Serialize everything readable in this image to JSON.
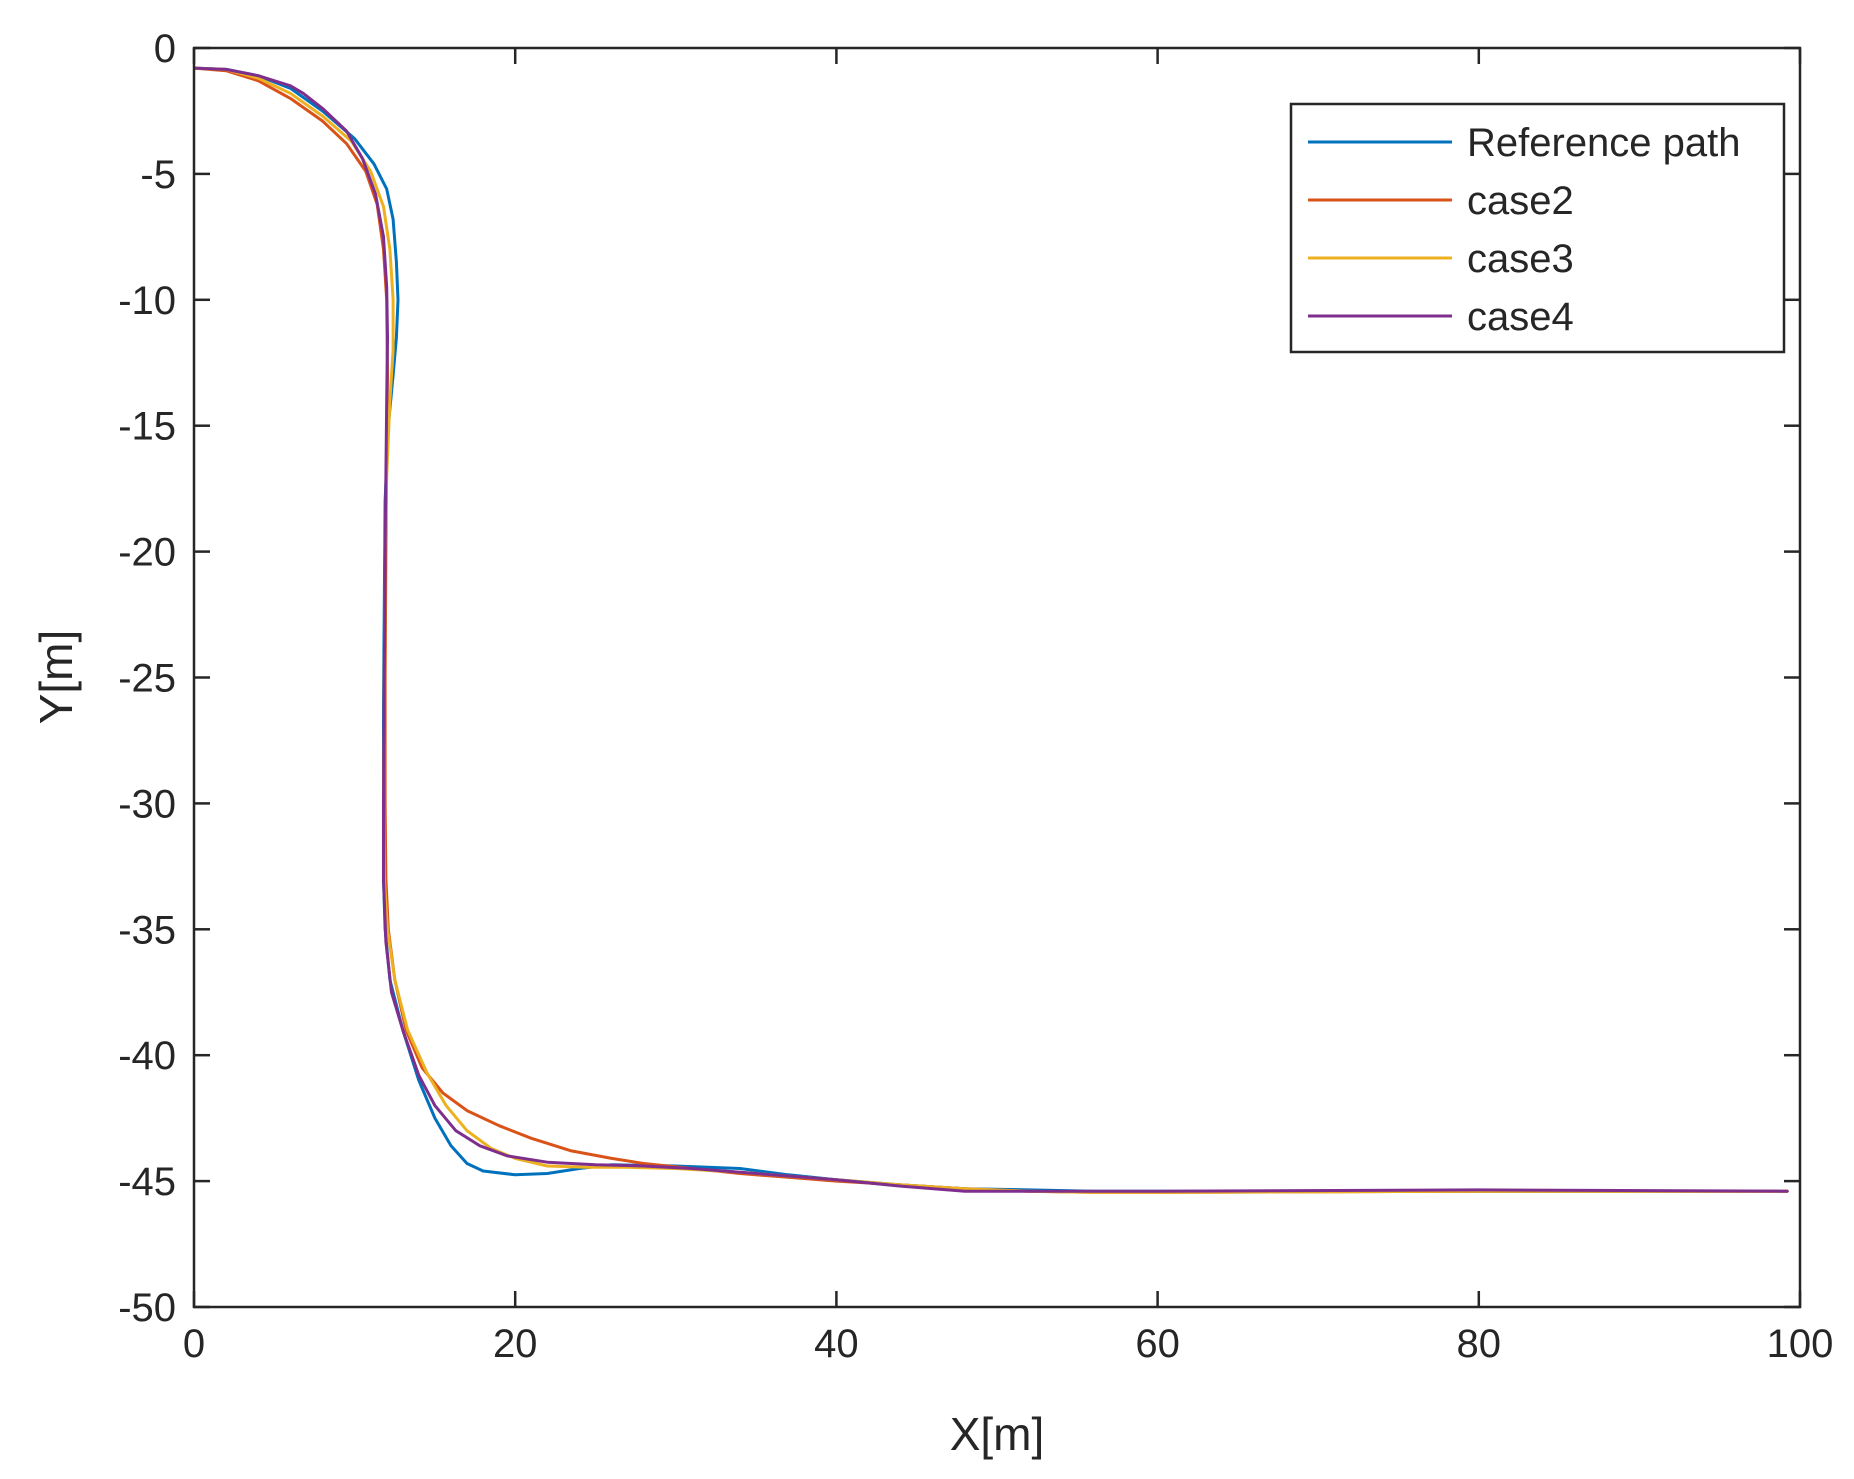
{
  "chart_data": {
    "type": "line",
    "title": "",
    "xlabel": "X[m]",
    "ylabel": "Y[m]",
    "xlim": [
      0,
      100
    ],
    "ylim": [
      -50,
      0
    ],
    "xticks": [
      0,
      20,
      40,
      60,
      80,
      100
    ],
    "yticks": [
      0,
      -5,
      -10,
      -15,
      -20,
      -25,
      -30,
      -35,
      -40,
      -45,
      -50
    ],
    "grid": false,
    "legend_position": "top-right",
    "series": [
      {
        "name": "Reference path",
        "color": "#0072BD",
        "points": [
          [
            0,
            -0.8
          ],
          [
            2,
            -0.85
          ],
          [
            4,
            -1.1
          ],
          [
            6,
            -1.6
          ],
          [
            8,
            -2.5
          ],
          [
            10,
            -3.6
          ],
          [
            11.2,
            -4.6
          ],
          [
            12,
            -5.6
          ],
          [
            12.4,
            -6.8
          ],
          [
            12.6,
            -8.5
          ],
          [
            12.7,
            -10
          ],
          [
            12.6,
            -11.5
          ],
          [
            12.4,
            -13
          ],
          [
            12.1,
            -15
          ],
          [
            11.9,
            -18
          ],
          [
            11.85,
            -22
          ],
          [
            11.8,
            -26
          ],
          [
            11.8,
            -30
          ],
          [
            11.8,
            -33
          ],
          [
            11.9,
            -35
          ],
          [
            12.2,
            -37
          ],
          [
            13,
            -39
          ],
          [
            14,
            -41
          ],
          [
            15,
            -42.5
          ],
          [
            16,
            -43.6
          ],
          [
            17,
            -44.3
          ],
          [
            18,
            -44.6
          ],
          [
            20,
            -44.75
          ],
          [
            22,
            -44.7
          ],
          [
            24,
            -44.5
          ],
          [
            26,
            -44.35
          ],
          [
            30,
            -44.4
          ],
          [
            34,
            -44.5
          ],
          [
            37,
            -44.75
          ],
          [
            40,
            -44.95
          ],
          [
            44,
            -45.15
          ],
          [
            48,
            -45.3
          ],
          [
            52,
            -45.35
          ],
          [
            56,
            -45.4
          ],
          [
            60,
            -45.4
          ],
          [
            80,
            -45.4
          ],
          [
            99.2,
            -45.4
          ]
        ]
      },
      {
        "name": "case2",
        "color": "#D95319",
        "points": [
          [
            0,
            -0.8
          ],
          [
            2,
            -0.9
          ],
          [
            4,
            -1.3
          ],
          [
            6,
            -2
          ],
          [
            8,
            -2.9
          ],
          [
            9.5,
            -3.8
          ],
          [
            10.7,
            -4.9
          ],
          [
            11.4,
            -6.2
          ],
          [
            11.8,
            -8
          ],
          [
            12,
            -10
          ],
          [
            12.05,
            -13
          ],
          [
            12,
            -16
          ],
          [
            11.95,
            -20
          ],
          [
            11.9,
            -25
          ],
          [
            11.9,
            -30
          ],
          [
            11.95,
            -33
          ],
          [
            12.1,
            -35
          ],
          [
            12.5,
            -37
          ],
          [
            13.2,
            -39
          ],
          [
            14.2,
            -40.5
          ],
          [
            15.5,
            -41.5
          ],
          [
            17,
            -42.2
          ],
          [
            19,
            -42.8
          ],
          [
            21,
            -43.3
          ],
          [
            23.5,
            -43.8
          ],
          [
            26,
            -44.1
          ],
          [
            28,
            -44.3
          ],
          [
            31,
            -44.5
          ],
          [
            34,
            -44.7
          ],
          [
            37,
            -44.85
          ],
          [
            40,
            -45
          ],
          [
            44,
            -45.15
          ],
          [
            48,
            -45.3
          ],
          [
            52,
            -45.4
          ],
          [
            56,
            -45.45
          ],
          [
            60,
            -45.45
          ],
          [
            80,
            -45.4
          ],
          [
            99.2,
            -45.4
          ]
        ]
      },
      {
        "name": "case3",
        "color": "#EDB120",
        "points": [
          [
            0,
            -0.8
          ],
          [
            2,
            -0.85
          ],
          [
            4,
            -1.2
          ],
          [
            6,
            -1.8
          ],
          [
            8,
            -2.7
          ],
          [
            9.8,
            -3.7
          ],
          [
            11,
            -4.9
          ],
          [
            11.8,
            -6.3
          ],
          [
            12.2,
            -8
          ],
          [
            12.4,
            -10
          ],
          [
            12.4,
            -12
          ],
          [
            12.2,
            -14
          ],
          [
            12,
            -17
          ],
          [
            11.9,
            -20
          ],
          [
            11.85,
            -25
          ],
          [
            11.8,
            -30
          ],
          [
            11.85,
            -33
          ],
          [
            12.05,
            -35
          ],
          [
            12.5,
            -37
          ],
          [
            13.3,
            -39
          ],
          [
            14.5,
            -40.7
          ],
          [
            15.7,
            -42
          ],
          [
            17,
            -43
          ],
          [
            18.5,
            -43.7
          ],
          [
            20,
            -44.1
          ],
          [
            22,
            -44.4
          ],
          [
            24.5,
            -44.45
          ],
          [
            27,
            -44.45
          ],
          [
            30,
            -44.5
          ],
          [
            34,
            -44.65
          ],
          [
            37,
            -44.8
          ],
          [
            40,
            -44.95
          ],
          [
            44,
            -45.15
          ],
          [
            48,
            -45.3
          ],
          [
            52,
            -45.4
          ],
          [
            56,
            -45.45
          ],
          [
            60,
            -45.45
          ],
          [
            80,
            -45.4
          ],
          [
            99.2,
            -45.4
          ]
        ]
      },
      {
        "name": "case4",
        "color": "#7E2F8E",
        "points": [
          [
            0,
            -0.8
          ],
          [
            2,
            -0.85
          ],
          [
            4,
            -1.1
          ],
          [
            6,
            -1.5
          ],
          [
            6.8,
            -1.8
          ],
          [
            8,
            -2.4
          ],
          [
            9.5,
            -3.3
          ],
          [
            10.5,
            -4.4
          ],
          [
            11.3,
            -5.8
          ],
          [
            11.8,
            -7.5
          ],
          [
            12,
            -9.5
          ],
          [
            12.05,
            -11.5
          ],
          [
            12,
            -14
          ],
          [
            11.95,
            -17
          ],
          [
            11.9,
            -20
          ],
          [
            11.85,
            -25
          ],
          [
            11.8,
            -30
          ],
          [
            11.8,
            -33
          ],
          [
            11.95,
            -35.5
          ],
          [
            12.3,
            -37.5
          ],
          [
            13,
            -39
          ],
          [
            14,
            -40.8
          ],
          [
            15,
            -42
          ],
          [
            16.3,
            -43
          ],
          [
            17.8,
            -43.6
          ],
          [
            19.5,
            -44
          ],
          [
            22,
            -44.25
          ],
          [
            25,
            -44.35
          ],
          [
            28,
            -44.4
          ],
          [
            31,
            -44.5
          ],
          [
            35,
            -44.7
          ],
          [
            40,
            -44.95
          ],
          [
            44,
            -45.2
          ],
          [
            48,
            -45.4
          ],
          [
            52,
            -45.4
          ],
          [
            56,
            -45.4
          ],
          [
            60,
            -45.4
          ],
          [
            80,
            -45.35
          ],
          [
            99.2,
            -45.4
          ]
        ]
      }
    ]
  }
}
